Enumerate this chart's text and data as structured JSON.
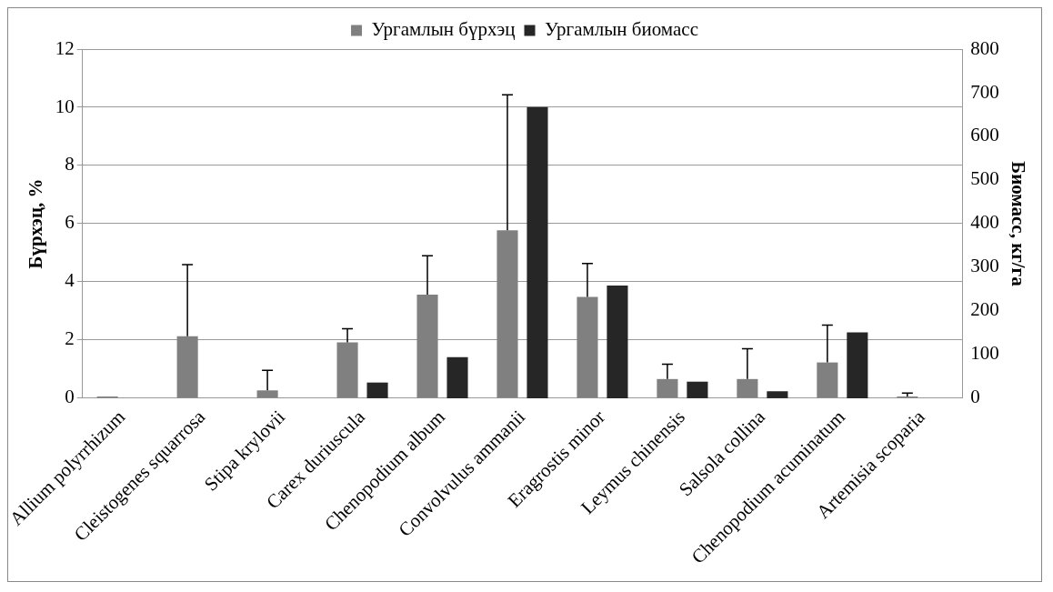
{
  "chart_data": {
    "type": "bar",
    "ylabel": "Бүрхэц, %",
    "y2label": "Биомасс, кг/га",
    "categories": [
      "Allium polyrrhizum",
      "Cleistogenes squarrosa",
      "Stipa krylovii",
      "Carex duriuscula",
      "Chenopodium album",
      "Convolvulus ammanii",
      "Eragrostis minor",
      "Leymus chinensis",
      "Salsola collina",
      "Chenopodium acuminatum",
      "Artemisia scoparia"
    ],
    "series": [
      {
        "name": "Ургамлын бүрхэц",
        "color": "#808080",
        "values": [
          0.06,
          2.13,
          0.27,
          1.92,
          3.56,
          5.77,
          3.48,
          0.66,
          0.66,
          1.23,
          0.06
        ],
        "errors": [
          null,
          [
            2.13,
            4.59
          ],
          [
            0.27,
            0.96
          ],
          [
            1.92,
            2.39
          ],
          [
            3.56,
            4.9
          ],
          [
            5.77,
            10.43
          ],
          [
            3.48,
            4.63
          ],
          [
            0.66,
            1.17
          ],
          [
            0.66,
            1.7
          ],
          [
            1.23,
            2.51
          ],
          [
            0.06,
            0.18
          ]
        ]
      },
      {
        "name": "Ургамлын биомасс",
        "color": "#262626",
        "axis": "y2",
        "values": [
          0,
          0,
          0,
          36,
          94,
          667,
          258,
          38,
          16,
          151,
          0
        ]
      }
    ],
    "ylim": [
      0,
      12
    ],
    "yticks": [
      0,
      2,
      4,
      6,
      8,
      10,
      12
    ],
    "y2lim": [
      0,
      800
    ],
    "y2ticks": [
      0,
      100,
      200,
      300,
      400,
      500,
      600,
      700,
      800
    ],
    "grid": "y",
    "legend": "top"
  }
}
